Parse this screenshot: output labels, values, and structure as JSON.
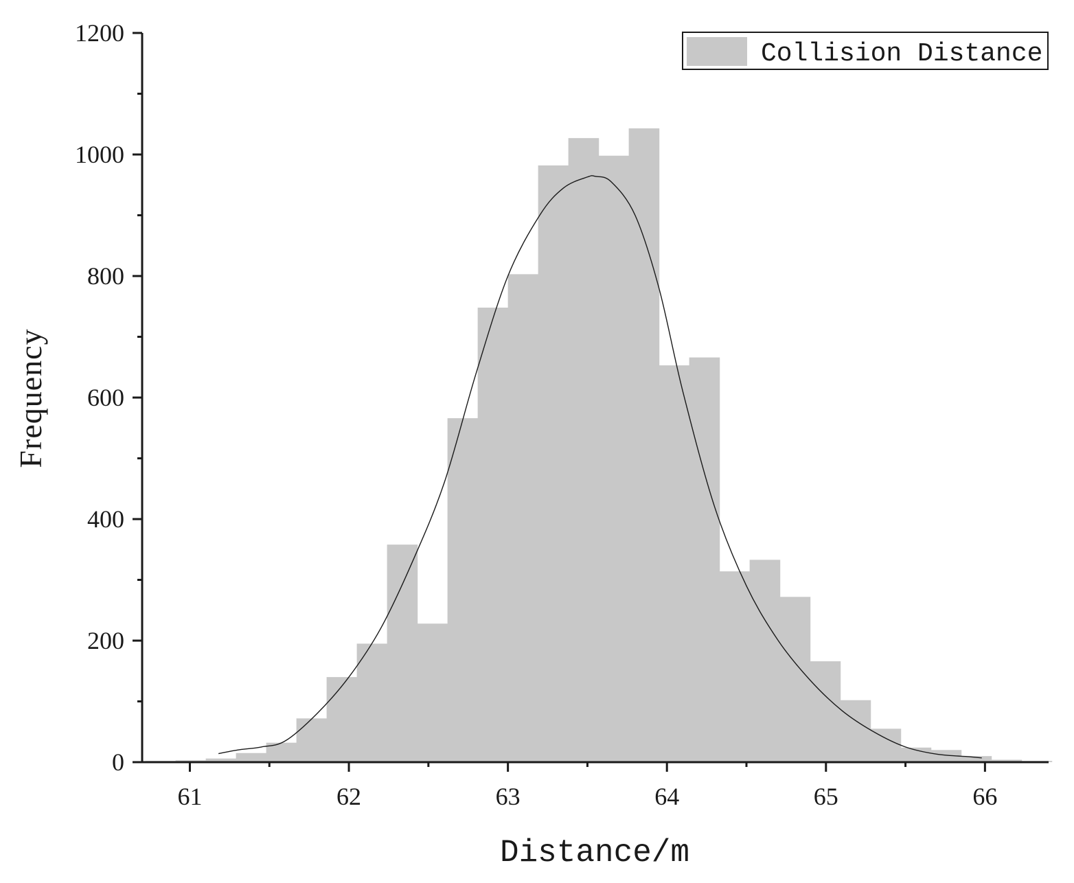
{
  "chart_data": {
    "type": "bar",
    "title": "",
    "xlabel": "Distance/m",
    "ylabel": "Frequency",
    "xlim": [
      60.7,
      66.4
    ],
    "ylim": [
      0,
      1200
    ],
    "x_ticks": [
      61,
      62,
      63,
      64,
      65,
      66
    ],
    "y_ticks": [
      0,
      200,
      400,
      600,
      800,
      1000,
      1200
    ],
    "x_minor_ticks": [
      61.5,
      62.5,
      63.5,
      64.5,
      65.5
    ],
    "y_minor_ticks": [
      100,
      300,
      500,
      700,
      900,
      1100
    ],
    "grid": false,
    "legend": {
      "position": "top-right",
      "entries": [
        "Collision Distance"
      ]
    },
    "bar_color": "#c8c8c8",
    "curve_color": "#1a1a1a",
    "bin_width": 0.19,
    "series": [
      {
        "name": "Collision Distance",
        "bin_starts": [
          60.72,
          60.91,
          61.1,
          61.29,
          61.48,
          61.67,
          61.86,
          62.05,
          62.24,
          62.43,
          62.62,
          62.81,
          63.0,
          63.19,
          63.38,
          63.57,
          63.76,
          63.95,
          64.14,
          64.33,
          64.52,
          64.71,
          64.9,
          65.09,
          65.28,
          65.47,
          65.66,
          65.85,
          66.04,
          66.23
        ],
        "values": [
          2,
          3,
          6,
          15,
          32,
          72,
          140,
          195,
          358,
          228,
          566,
          748,
          803,
          982,
          1027,
          998,
          1043,
          653,
          666,
          314,
          333,
          272,
          166,
          102,
          55,
          24,
          20,
          10,
          4,
          2
        ]
      }
    ],
    "fit_curve": {
      "x": [
        61.18,
        61.3,
        61.45,
        61.6,
        61.8,
        62.0,
        62.2,
        62.4,
        62.6,
        62.8,
        63.0,
        63.2,
        63.35,
        63.5,
        63.55,
        63.65,
        63.8,
        63.95,
        64.1,
        64.3,
        64.5,
        64.7,
        64.9,
        65.1,
        65.3,
        65.5,
        65.7,
        65.9,
        65.98
      ],
      "y": [
        14,
        20,
        25,
        35,
        80,
        140,
        220,
        330,
        460,
        640,
        800,
        900,
        945,
        963,
        964,
        955,
        900,
        780,
        610,
        420,
        290,
        200,
        135,
        85,
        50,
        25,
        13,
        9,
        7
      ]
    }
  }
}
